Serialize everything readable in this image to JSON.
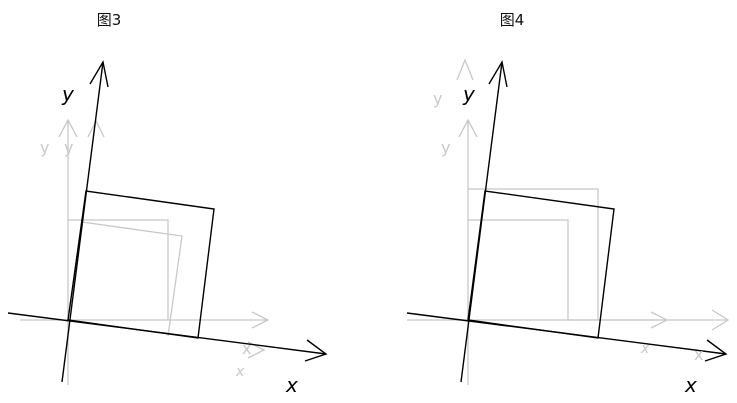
{
  "figures": [
    {
      "title": "图3",
      "labels": {
        "y_main": "y",
        "x_main": "x",
        "y_faint_a": "y",
        "y_faint_b": "y",
        "x_faint_a": "x",
        "x_faint_b": "x"
      }
    },
    {
      "title": "图4",
      "labels": {
        "y_main": "y",
        "x_main": "x",
        "y_faint_a": "y",
        "y_faint_b": "y",
        "x_faint_a": "x",
        "x_faint_b": "x"
      }
    }
  ],
  "colors": {
    "main_stroke": "#000000",
    "faint_stroke": "#c8c8c8"
  }
}
